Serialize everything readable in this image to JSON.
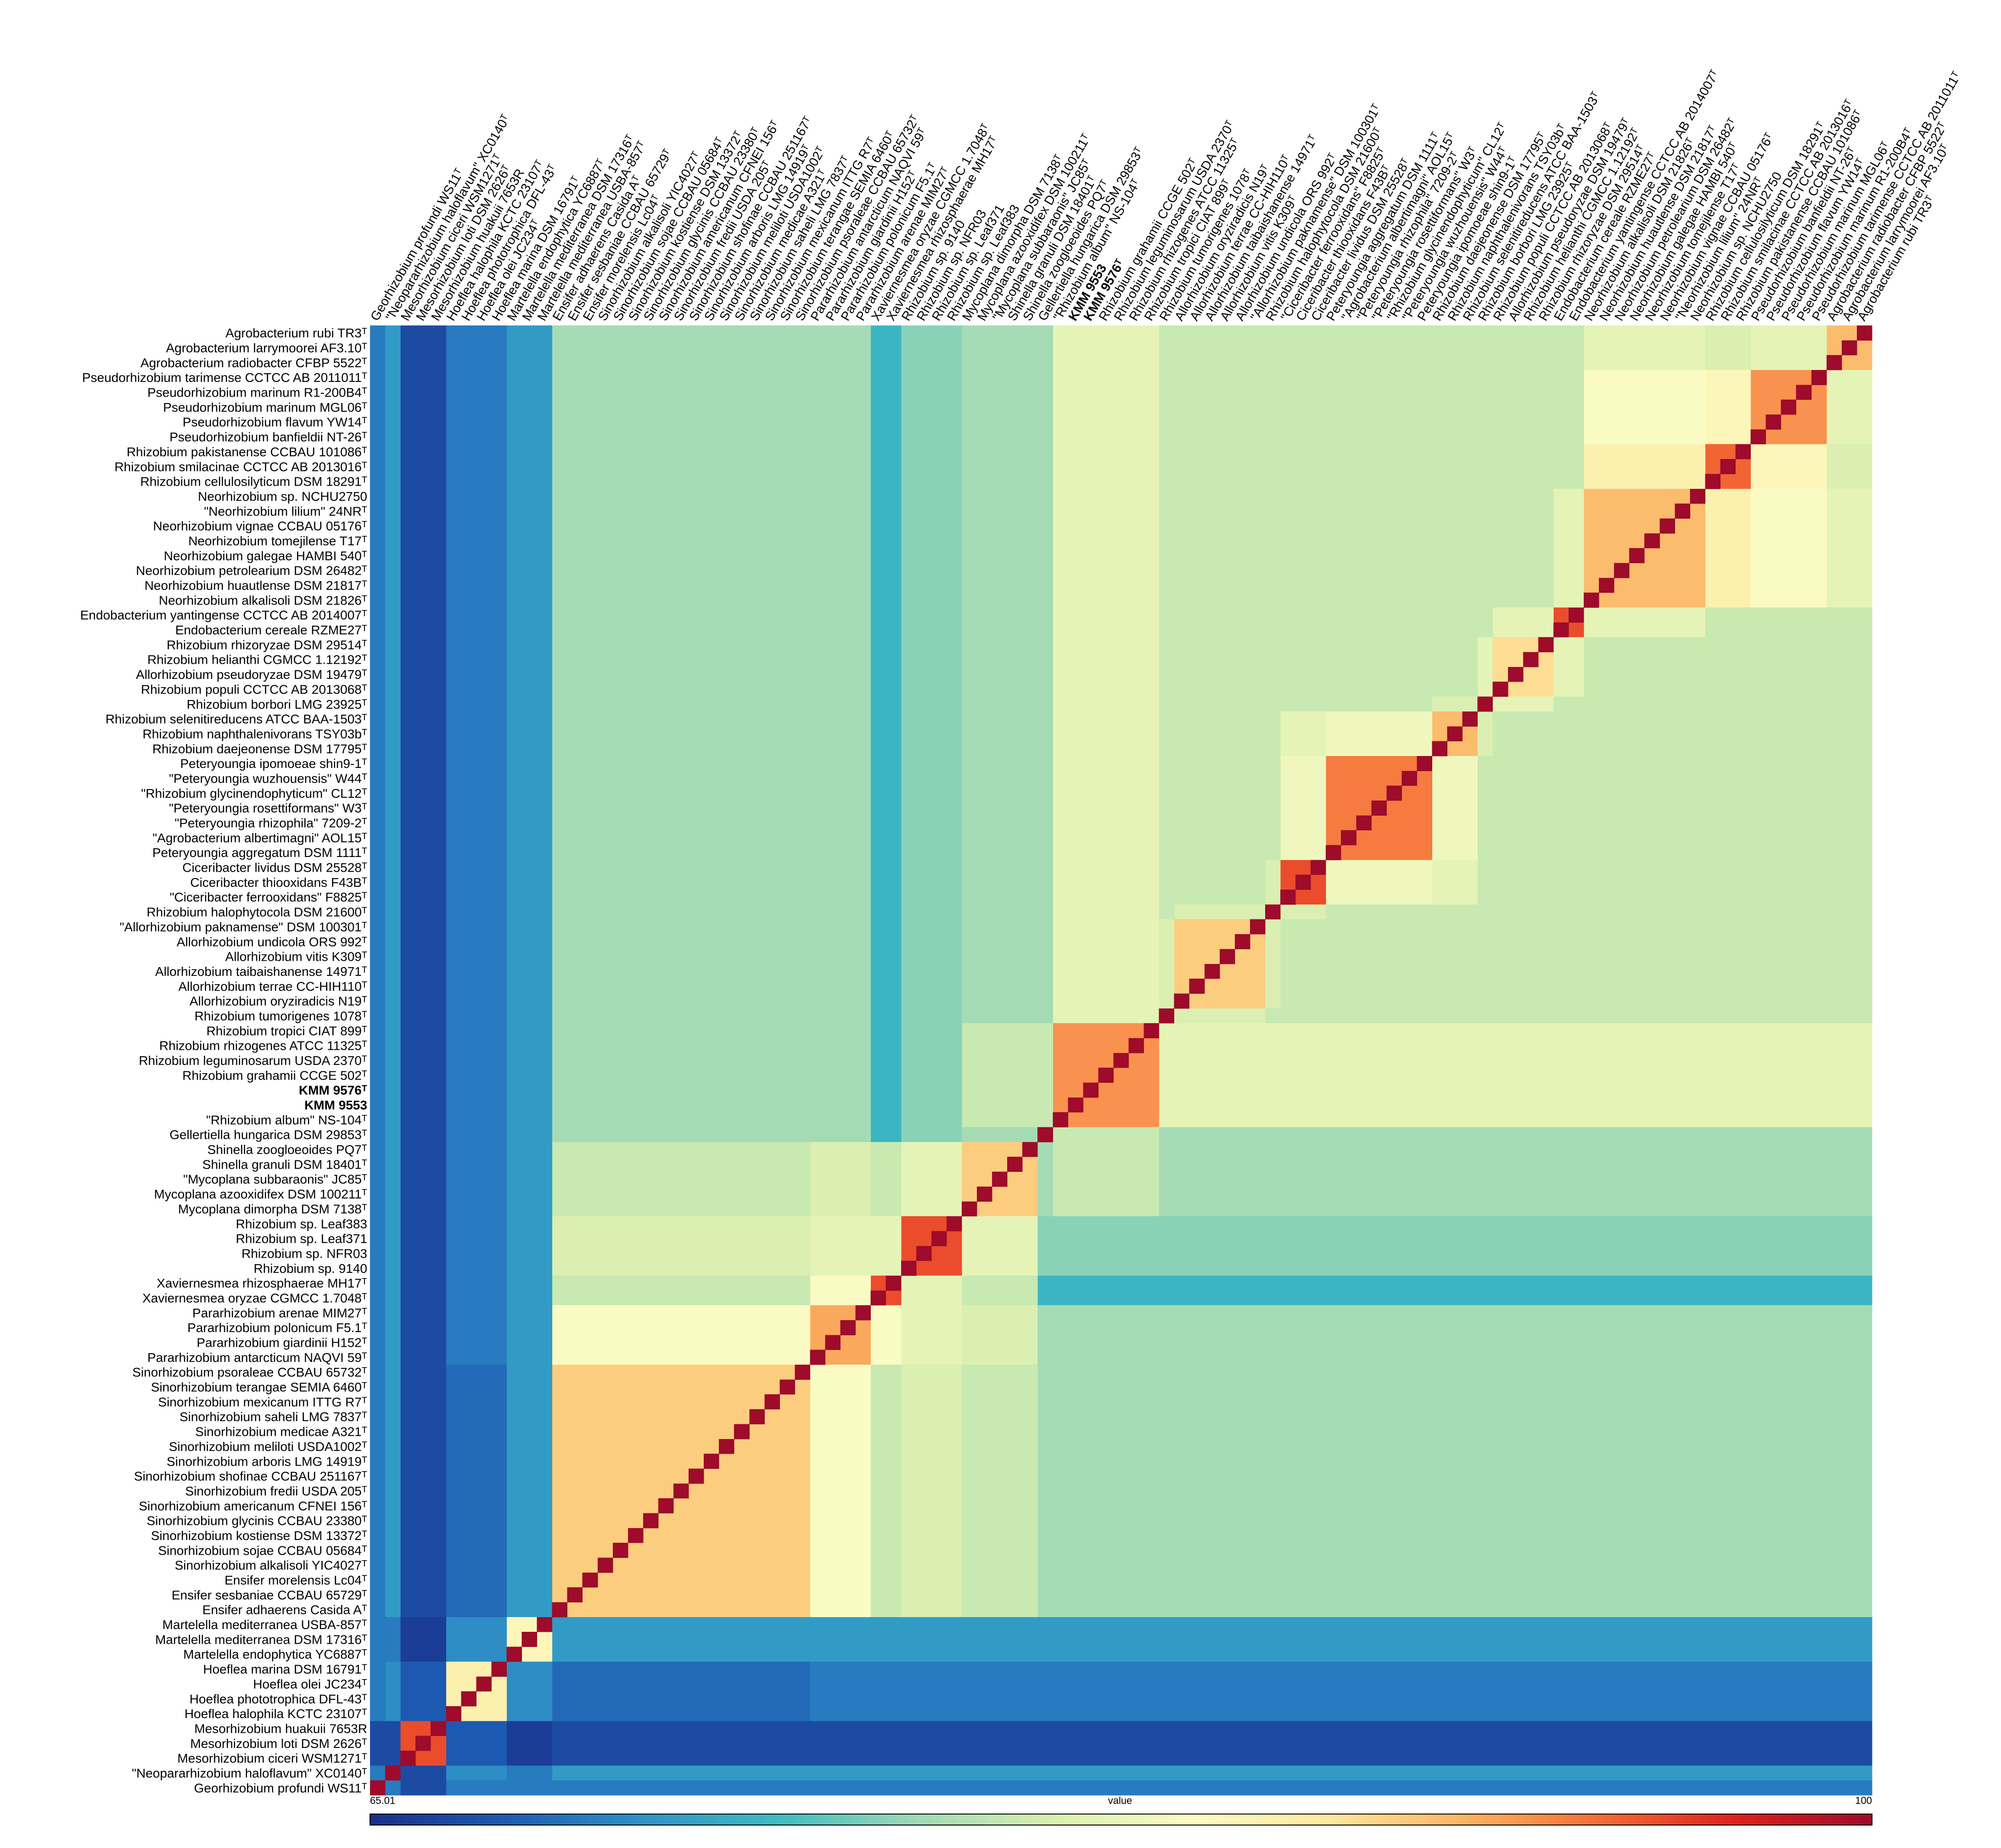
{
  "chart_data": {
    "type": "heatmap",
    "labels": [
      "Agrobacterium rubi TR3ᵀ",
      "Agrobacterium larrymoorei AF3.10ᵀ",
      "Agrobacterium radiobacter CFBP 5522ᵀ",
      "Pseudorhizobium tarimense CCTCC AB 2011011ᵀ",
      "Pseudorhizobium marinum R1-200B4ᵀ",
      "Pseudorhizobium marinum MGL06ᵀ",
      "Pseudorhizobium flavum YW14ᵀ",
      "Pseudorhizobium banfieldii NT-26ᵀ",
      "Rhizobium pakistanense CCBAU 101086ᵀ",
      "Rhizobium smilacinae CCTCC AB 2013016ᵀ",
      "Rhizobium cellulosilyticum DSM 18291ᵀ",
      "Neorhizobium sp. NCHU2750",
      "\"Neorhizobium lilium\" 24NRᵀ",
      "Neorhizobium vignae CCBAU 05176ᵀ",
      "Neorhizobium tomejilense T17ᵀ",
      "Neorhizobium galegae HAMBI 540ᵀ",
      "Neorhizobium petrolearium DSM 26482ᵀ",
      "Neorhizobium huautlense DSM 21817ᵀ",
      "Neorhizobium alkalisoli DSM 21826ᵀ",
      "Endobacterium yantingense CCTCC AB 2014007ᵀ",
      "Endobacterium cereale RZME27ᵀ",
      "Rhizobium rhizoryzae DSM 29514ᵀ",
      "Rhizobium helianthi CGMCC 1.12192ᵀ",
      "Allorhizobium pseudoryzae DSM 19479ᵀ",
      "Rhizobium populi CCTCC AB 2013068ᵀ",
      "Rhizobium borbori LMG 23925ᵀ",
      "Rhizobium selenitireducens ATCC BAA-1503ᵀ",
      "Rhizobium naphthalenivorans TSY03bᵀ",
      "Rhizobium daejeonense DSM 17795ᵀ",
      "Peteryoungia ipomoeae shin9-1ᵀ",
      "\"Peteryoungia wuzhouensis\" W44ᵀ",
      "\"Rhizobium glycinendophyticum\" CL12ᵀ",
      "\"Peteryoungia rosettiformans\" W3ᵀ",
      "\"Peteryoungia rhizophila\" 7209-2ᵀ",
      "\"Agrobacterium albertimagni\" AOL15ᵀ",
      "Peteryoungia aggregatum DSM 1111ᵀ",
      "Ciceribacter lividus DSM 25528ᵀ",
      "Ciceribacter thiooxidans F43Bᵀ",
      "\"Ciceribacter ferrooxidans\" F8825ᵀ",
      "Rhizobium halophytocola DSM 21600ᵀ",
      "\"Allorhizobium paknamense\" DSM 100301ᵀ",
      "Allorhizobium undicola ORS 992ᵀ",
      "Allorhizobium vitis K309ᵀ",
      "Allorhizobium taibaishanense 14971ᵀ",
      "Allorhizobium terrae CC-HIH110ᵀ",
      "Allorhizobium oryziradicis N19ᵀ",
      "Rhizobium tumorigenes 1078ᵀ",
      "Rhizobium tropici CIAT 899ᵀ",
      "Rhizobium rhizogenes ATCC 11325ᵀ",
      "Rhizobium leguminosarum USDA 2370ᵀ",
      "Rhizobium grahamii CCGE 502ᵀ",
      {
        "text": "KMM 9576ᵀ",
        "bold": true
      },
      {
        "text": "KMM 9553",
        "bold": true
      },
      "\"Rhizobium album\" NS-104ᵀ",
      "Gellertiella hungarica DSM 29853ᵀ",
      "Shinella zoogloeoides PQ7ᵀ",
      "Shinella granuli DSM 18401ᵀ",
      "\"Mycoplana subbaraonis\" JC85ᵀ",
      "Mycoplana azooxidifex DSM 100211ᵀ",
      "Mycoplana dimorpha DSM 7138ᵀ",
      "Rhizobium sp. Leaf383",
      "Rhizobium sp. Leaf371",
      "Rhizobium sp. NFR03",
      "Rhizobium sp. 9140",
      "Xaviernesmea rhizosphaerae MH17ᵀ",
      "Xaviernesmea oryzae CGMCC 1.7048ᵀ",
      "Pararhizobium arenae MIM27ᵀ",
      "Pararhizobium polonicum F5.1ᵀ",
      "Pararhizobium giardinii H152ᵀ",
      "Pararhizobium antarcticum NAQVI 59ᵀ",
      "Sinorhizobium psoraleae CCBAU 65732ᵀ",
      "Sinorhizobium terangae SEMIA 6460ᵀ",
      "Sinorhizobium mexicanum ITTG R7ᵀ",
      "Sinorhizobium saheli LMG 7837ᵀ",
      "Sinorhizobium medicae A321ᵀ",
      "Sinorhizobium meliloti USDA1002ᵀ",
      "Sinorhizobium arboris LMG 14919ᵀ",
      "Sinorhizobium shofinae CCBAU 251167ᵀ",
      "Sinorhizobium fredii USDA 205ᵀ",
      "Sinorhizobium americanum CFNEI 156ᵀ",
      "Sinorhizobium glycinis CCBAU 23380ᵀ",
      "Sinorhizobium kostiense DSM 13372ᵀ",
      "Sinorhizobium sojae CCBAU 05684ᵀ",
      "Sinorhizobium alkalisoli YIC4027ᵀ",
      "Ensifer morelensis Lc04ᵀ",
      "Ensifer sesbaniae CCBAU 65729ᵀ",
      "Ensifer adhaerens Casida Aᵀ",
      "Martelella mediterranea USBA-857ᵀ",
      "Martelella mediterranea DSM 17316ᵀ",
      "Martelella endophytica YC6887ᵀ",
      "Hoeflea marina DSM 16791ᵀ",
      "Hoeflea olei JC234ᵀ",
      "Hoeflea phototrophica DFL-43ᵀ",
      "Hoeflea halophila KCTC 23107ᵀ",
      "Mesorhizobium huakuii 7653R",
      "Mesorhizobium loti DSM 2626ᵀ",
      "Mesorhizobium ciceri WSM1271ᵀ",
      "\"Neopararhizobium haloflavum\" XC0140ᵀ",
      "Georhizobium profundi WS11ᵀ"
    ],
    "block_sizes": [
      3,
      5,
      3,
      8,
      2,
      4,
      1,
      3,
      7,
      3,
      1,
      6,
      1,
      7,
      1,
      5,
      4,
      2,
      4,
      17,
      3,
      4,
      3,
      1,
      1
    ],
    "values": [
      [
        90,
        82,
        81,
        82,
        80,
        80,
        80,
        80,
        80,
        80,
        80,
        80,
        80,
        82,
        78,
        78,
        77,
        74,
        78,
        78,
        72,
        70,
        67,
        72,
        70
      ],
      [
        82,
        92,
        85,
        84,
        80,
        80,
        80,
        80,
        80,
        80,
        80,
        80,
        80,
        82,
        78,
        78,
        77,
        74,
        78,
        78,
        72,
        70,
        67,
        72,
        70
      ],
      [
        81,
        85,
        94,
        86,
        80,
        80,
        80,
        80,
        80,
        80,
        80,
        80,
        80,
        82,
        78,
        78,
        77,
        74,
        78,
        78,
        72,
        70,
        67,
        72,
        70
      ],
      [
        82,
        84,
        86,
        90,
        82,
        80,
        80,
        80,
        80,
        80,
        80,
        80,
        80,
        82,
        78,
        78,
        77,
        74,
        78,
        78,
        72,
        70,
        67,
        72,
        70
      ],
      [
        80,
        80,
        80,
        82,
        95,
        82,
        80,
        80,
        80,
        80,
        80,
        80,
        80,
        82,
        78,
        78,
        77,
        74,
        78,
        78,
        72,
        70,
        67,
        72,
        70
      ],
      [
        80,
        80,
        80,
        80,
        82,
        88,
        82,
        80,
        80,
        80,
        80,
        80,
        80,
        82,
        78,
        78,
        77,
        74,
        78,
        78,
        72,
        70,
        67,
        72,
        70
      ],
      [
        80,
        80,
        80,
        80,
        80,
        82,
        100,
        81,
        80,
        80,
        80,
        80,
        80,
        82,
        78,
        78,
        77,
        74,
        78,
        78,
        72,
        70,
        67,
        72,
        70
      ],
      [
        80,
        80,
        80,
        80,
        80,
        80,
        81,
        90,
        83,
        82,
        80,
        80,
        80,
        82,
        78,
        78,
        77,
        74,
        78,
        78,
        72,
        70,
        67,
        72,
        70
      ],
      [
        80,
        80,
        80,
        80,
        80,
        80,
        80,
        83,
        93,
        83,
        80,
        80,
        80,
        82,
        78,
        78,
        77,
        74,
        78,
        78,
        72,
        70,
        67,
        72,
        70
      ],
      [
        80,
        80,
        80,
        80,
        80,
        80,
        80,
        82,
        83,
        95,
        81,
        80,
        80,
        82,
        78,
        78,
        77,
        74,
        78,
        78,
        72,
        70,
        67,
        72,
        70
      ],
      [
        80,
        80,
        80,
        80,
        80,
        80,
        80,
        80,
        80,
        81,
        100,
        81,
        80,
        82,
        78,
        78,
        77,
        74,
        78,
        78,
        72,
        70,
        67,
        72,
        70
      ],
      [
        80,
        80,
        80,
        80,
        80,
        80,
        80,
        80,
        80,
        80,
        81,
        89,
        81,
        82,
        78,
        78,
        77,
        74,
        78,
        78,
        72,
        70,
        67,
        72,
        70
      ],
      [
        80,
        80,
        80,
        80,
        80,
        80,
        80,
        80,
        80,
        80,
        80,
        81,
        100,
        82,
        78,
        78,
        77,
        74,
        78,
        78,
        72,
        70,
        67,
        72,
        70
      ],
      [
        82,
        82,
        82,
        82,
        82,
        82,
        82,
        82,
        82,
        82,
        82,
        82,
        82,
        92,
        80,
        80,
        77,
        74,
        78,
        78,
        72,
        70,
        67,
        72,
        70
      ],
      [
        78,
        78,
        78,
        78,
        78,
        78,
        78,
        78,
        78,
        78,
        78,
        78,
        78,
        80,
        100,
        78,
        77,
        74,
        78,
        78,
        72,
        70,
        67,
        72,
        70
      ],
      [
        78,
        78,
        78,
        78,
        78,
        78,
        78,
        78,
        78,
        78,
        78,
        78,
        78,
        80,
        78,
        89,
        82,
        80,
        81,
        80,
        72,
        70,
        67,
        72,
        70
      ],
      [
        77,
        77,
        77,
        77,
        77,
        77,
        77,
        77,
        77,
        77,
        77,
        77,
        77,
        77,
        77,
        82,
        95,
        82,
        82,
        81,
        72,
        70,
        67,
        72,
        70
      ],
      [
        74,
        74,
        74,
        74,
        74,
        74,
        74,
        74,
        74,
        74,
        74,
        74,
        74,
        74,
        74,
        80,
        82,
        95,
        84,
        80,
        72,
        70,
        67,
        72,
        70
      ],
      [
        78,
        78,
        78,
        78,
        78,
        78,
        78,
        78,
        78,
        78,
        78,
        78,
        78,
        78,
        78,
        81,
        82,
        84,
        91,
        84,
        72,
        70,
        67,
        72,
        70
      ],
      [
        78,
        78,
        78,
        78,
        78,
        78,
        78,
        78,
        78,
        78,
        78,
        78,
        78,
        78,
        78,
        80,
        81,
        80,
        84,
        89,
        72,
        69,
        67,
        72,
        70
      ],
      [
        72,
        72,
        72,
        72,
        72,
        72,
        72,
        72,
        72,
        72,
        72,
        72,
        72,
        72,
        72,
        72,
        72,
        72,
        72,
        72,
        85,
        71,
        66,
        70,
        70
      ],
      [
        70,
        70,
        70,
        70,
        70,
        70,
        70,
        70,
        70,
        70,
        70,
        70,
        70,
        70,
        70,
        70,
        70,
        70,
        70,
        69,
        71,
        86,
        68,
        71,
        70
      ],
      [
        67,
        67,
        67,
        67,
        67,
        67,
        67,
        67,
        67,
        67,
        67,
        67,
        67,
        67,
        67,
        67,
        67,
        67,
        67,
        67,
        66,
        68,
        95,
        67,
        67
      ],
      [
        72,
        72,
        72,
        72,
        72,
        72,
        72,
        72,
        72,
        72,
        72,
        72,
        72,
        72,
        72,
        72,
        72,
        72,
        72,
        72,
        70,
        71,
        67,
        100,
        70
      ],
      [
        70,
        70,
        70,
        70,
        70,
        70,
        70,
        70,
        70,
        70,
        70,
        70,
        70,
        70,
        70,
        70,
        70,
        70,
        70,
        70,
        70,
        70,
        67,
        70,
        100
      ]
    ],
    "diagonal_value": 100,
    "vmin": 65.01,
    "vmax": 100,
    "colorbar_label": "value",
    "colormap": [
      "#1a2f8a",
      "#1e5cb3",
      "#2f93c6",
      "#3fbcc2",
      "#9fd9b5",
      "#d9efb0",
      "#fbfbc5",
      "#fde9a0",
      "#fbb564",
      "#f46d36",
      "#e0201d",
      "#9e0b2b"
    ]
  }
}
